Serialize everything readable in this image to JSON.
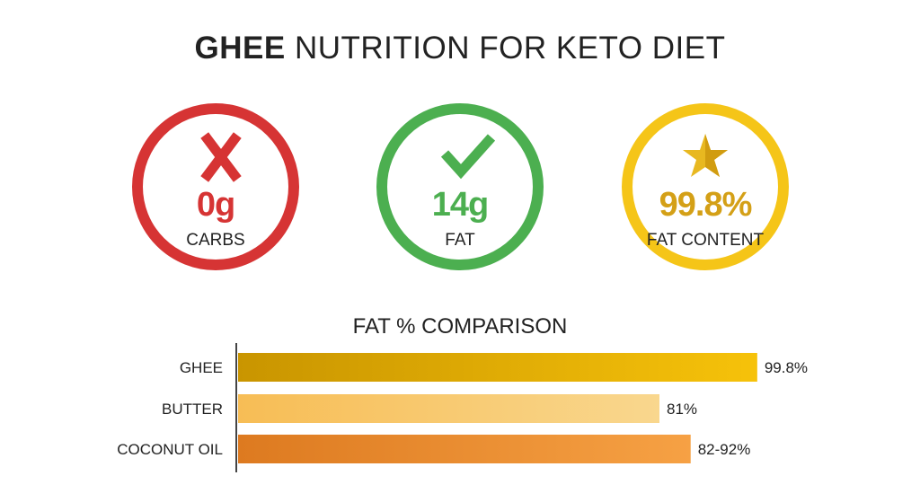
{
  "title": {
    "bold": "GHEE",
    "rest": " NUTRITION FOR KETO DIET"
  },
  "badges": [
    {
      "icon": "x-mark-icon",
      "value": "0g",
      "label": "CARBS",
      "color": "#d63434"
    },
    {
      "icon": "check-mark-icon",
      "value": "14g",
      "label": "FAT",
      "color": "#4caf50"
    },
    {
      "icon": "star-icon",
      "value": "99.8%",
      "label": "FAT CONTENT",
      "color": "#f5c518",
      "value_color": "#d4a017"
    }
  ],
  "chart_data": {
    "type": "bar",
    "orientation": "horizontal",
    "title": "FAT % COMPARISON",
    "categories": [
      "GHEE",
      "BUTTER",
      "COCONUT OIL"
    ],
    "values": [
      99.8,
      81,
      [
        82,
        92
      ]
    ],
    "data_labels": [
      "99.8%",
      "81%",
      "82-92%"
    ],
    "colors": [
      [
        "#c99500",
        "#f6c20a"
      ],
      [
        "#f7bd55",
        "#f9d78e"
      ],
      [
        "#dd7a20",
        "#f6a144"
      ]
    ],
    "xlim": [
      0,
      100
    ],
    "grid": false
  }
}
